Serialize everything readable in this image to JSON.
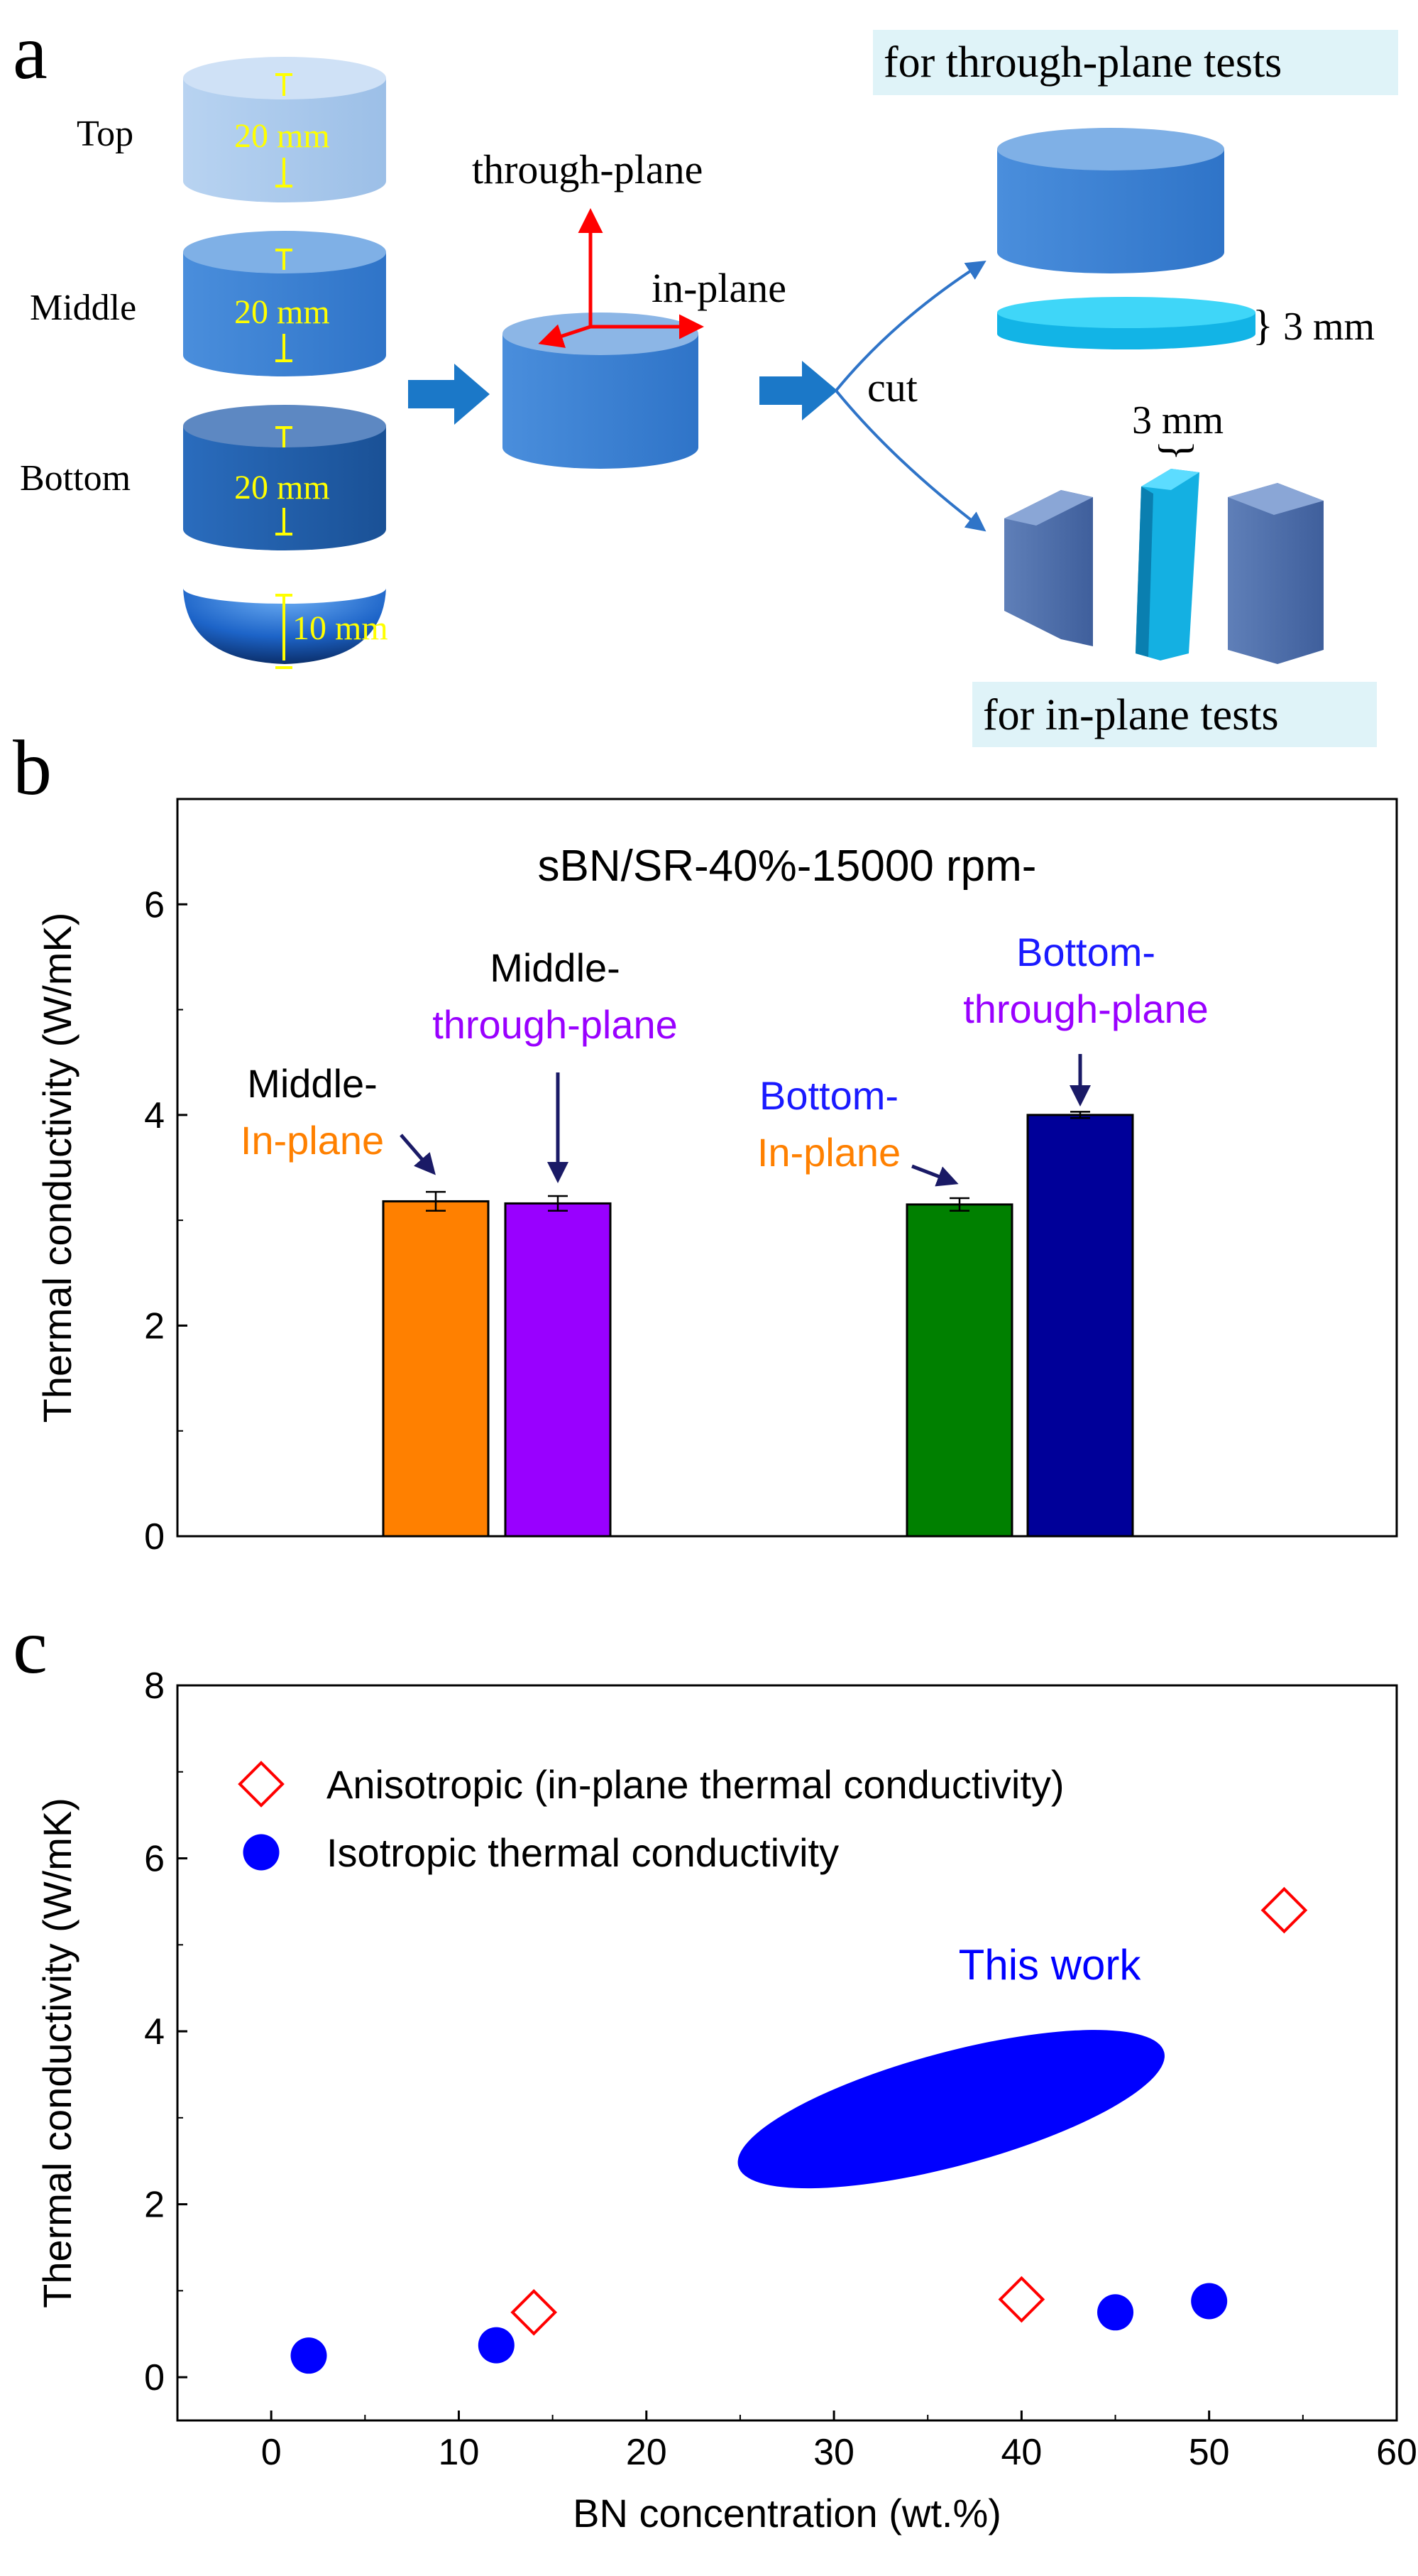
{
  "colors": {
    "orange": "#ff8000",
    "purple": "#9900ff",
    "green": "#008000",
    "navy": "#000099",
    "blue_text": "#1a1aff",
    "arrow_navy": "#1a1a66",
    "cyl_light": "#a9c8ec",
    "cyl_mid": "#3a80d2",
    "cyl_dark": "#1f5ea8",
    "cyan": "#1ec8ee",
    "highlight": "#dff3f8",
    "yellow": "#ffff00",
    "red": "#ff0000"
  },
  "panel_a": {
    "label": "a",
    "layers": [
      {
        "name": "Top",
        "thickness": "20 mm"
      },
      {
        "name": "Middle",
        "thickness": "20 mm"
      },
      {
        "name": "Bottom",
        "thickness": "20 mm"
      },
      {
        "name": "",
        "thickness": "10 mm"
      }
    ],
    "axis_through": "through-plane",
    "axis_in": "in-plane",
    "cut_label": "cut",
    "through_tests_label": "for through-plane tests",
    "in_tests_label": "for in-plane tests",
    "slice_thickness_through": "3 mm",
    "slice_thickness_in": "3 mm"
  },
  "panel_b": {
    "label": "b"
  },
  "panel_c": {
    "label": "c"
  },
  "chart_data": [
    {
      "type": "bar",
      "title": "sBN/SR-40%-15000 rpm-",
      "ylabel": "Thermal conductivity (W/mK)",
      "ylim": [
        0,
        7
      ],
      "yticks": [
        0,
        2,
        4,
        6
      ],
      "bars": [
        {
          "group": "Middle",
          "direction": "In-plane",
          "value": 3.18,
          "error": 0.09,
          "label_top": "Middle-",
          "label_bottom": "In-plane",
          "color": "#ff8000"
        },
        {
          "group": "Middle",
          "direction": "through-plane",
          "value": 3.16,
          "error": 0.07,
          "label_top": "Middle-",
          "label_bottom": "through-plane",
          "color": "#9900ff"
        },
        {
          "group": "Bottom",
          "direction": "In-plane",
          "value": 3.15,
          "error": 0.06,
          "label_top": "Bottom-",
          "label_bottom": "In-plane",
          "color": "#008000"
        },
        {
          "group": "Bottom",
          "direction": "through-plane",
          "value": 4.0,
          "error": 0.03,
          "label_top": "Bottom-",
          "label_bottom": "through-plane",
          "color": "#000099"
        }
      ]
    },
    {
      "type": "scatter",
      "xlabel": "BN concentration (wt.%)",
      "ylabel": "Thermal conductivity (W/mK)",
      "xlim": [
        -5,
        60
      ],
      "ylim": [
        -0.5,
        8
      ],
      "xticks": [
        0,
        10,
        20,
        30,
        40,
        50,
        60
      ],
      "yticks": [
        0,
        2,
        4,
        6,
        8
      ],
      "series": [
        {
          "name": "Anisotropic (in-plane thermal conductivity)",
          "marker": "open-diamond",
          "color": "#ff0000",
          "points": [
            {
              "x": 14,
              "y": 0.75
            },
            {
              "x": 40,
              "y": 0.9
            },
            {
              "x": 54,
              "y": 5.4
            }
          ]
        },
        {
          "name": "Isotropic thermal conductivity",
          "marker": "filled-circle",
          "color": "#0000ff",
          "points": [
            {
              "x": 2,
              "y": 0.25
            },
            {
              "x": 12,
              "y": 0.37
            },
            {
              "x": 45,
              "y": 0.75
            },
            {
              "x": 50,
              "y": 0.88
            }
          ]
        }
      ],
      "annotation": {
        "text": "This work",
        "region_x": [
          24.5,
          48
        ],
        "region_y": [
          2.3,
          3.9
        ]
      }
    }
  ]
}
